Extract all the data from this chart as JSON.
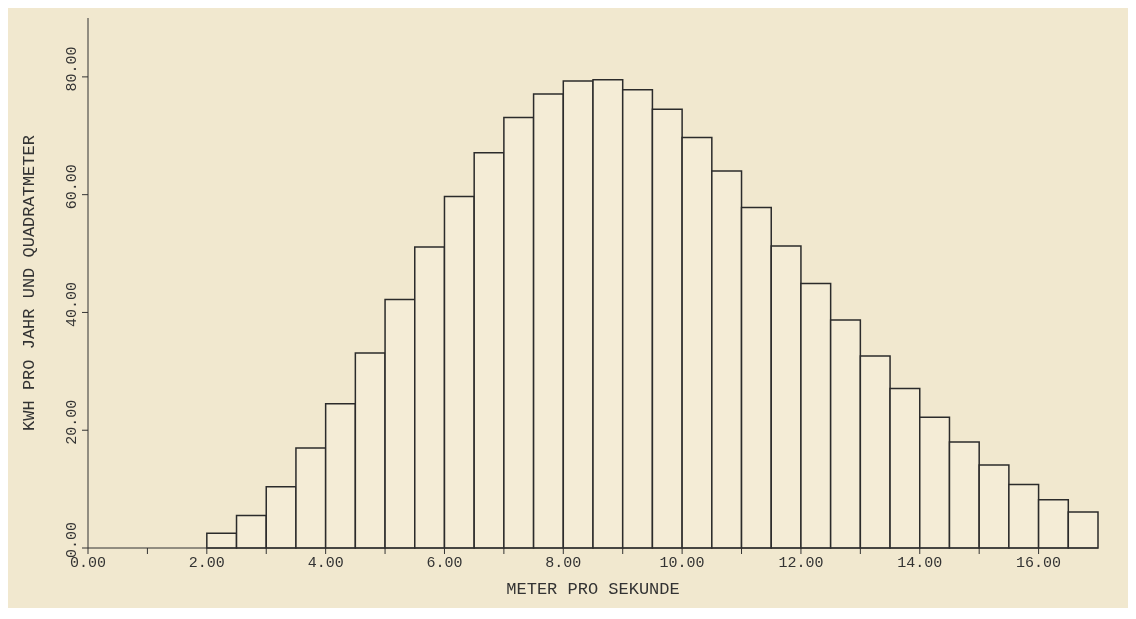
{
  "chart_data": {
    "type": "histogram",
    "xlabel": "METER PRO SEKUNDE",
    "ylabel": "KWH PRO JAHR UND QUADRATMETER",
    "bins": [
      2.0,
      2.5,
      3.0,
      3.5,
      4.0,
      4.5,
      5.0,
      5.5,
      6.0,
      6.5,
      7.0,
      7.5,
      8.0,
      8.5,
      9.0,
      9.5,
      10.0,
      10.5,
      11.0,
      11.5,
      12.0,
      12.5,
      13.0,
      13.5,
      14.0,
      14.5,
      15.0,
      15.5,
      16.0,
      16.5,
      17.0
    ],
    "values": [
      2.5,
      5.5,
      10.4,
      17.0,
      24.5,
      33.1,
      42.2,
      51.1,
      59.7,
      67.1,
      73.1,
      77.1,
      79.3,
      79.5,
      77.8,
      74.5,
      69.7,
      64.0,
      57.8,
      51.3,
      44.9,
      38.7,
      32.6,
      27.1,
      22.2,
      18.0,
      14.1,
      10.8,
      8.2,
      6.1
    ],
    "color": "#2b2b2b",
    "xlim": [
      0,
      17
    ],
    "ylim": [
      0,
      90
    ],
    "xticks": [
      {
        "value": 0,
        "label": "0.00"
      },
      {
        "value": 1,
        "label": null
      },
      {
        "value": 2,
        "label": "2.00"
      },
      {
        "value": 3,
        "label": null
      },
      {
        "value": 4,
        "label": "4.00"
      },
      {
        "value": 5,
        "label": null
      },
      {
        "value": 6,
        "label": "6.00"
      },
      {
        "value": 7,
        "label": null
      },
      {
        "value": 8,
        "label": "8.00"
      },
      {
        "value": 9,
        "label": null
      },
      {
        "value": 10,
        "label": "10.00"
      },
      {
        "value": 11,
        "label": null
      },
      {
        "value": 12,
        "label": "12.00"
      },
      {
        "value": 13,
        "label": null
      },
      {
        "value": 14,
        "label": "14.00"
      },
      {
        "value": 15,
        "label": null
      },
      {
        "value": 16,
        "label": "16.00"
      }
    ],
    "yticks": [
      {
        "value": 0,
        "label": "0.00"
      },
      {
        "value": 20,
        "label": "20.00"
      },
      {
        "value": 40,
        "label": "40.00"
      },
      {
        "value": 60,
        "label": "60.00"
      },
      {
        "value": 80,
        "label": "80.00"
      }
    ],
    "grid": false
  }
}
